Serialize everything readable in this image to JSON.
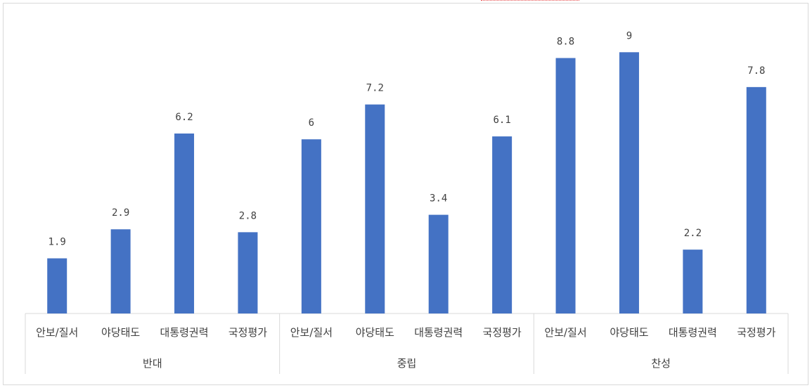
{
  "chart_data": {
    "type": "bar",
    "groups": [
      {
        "name": "반대",
        "categories": [
          "안보/질서",
          "야당태도",
          "대통령권력",
          "국정평가"
        ],
        "values": [
          1.9,
          2.9,
          6.2,
          2.8
        ]
      },
      {
        "name": "중립",
        "categories": [
          "안보/질서",
          "야당태도",
          "대통령권력",
          "국정평가"
        ],
        "values": [
          6,
          7.2,
          3.4,
          6.1
        ]
      },
      {
        "name": "찬성",
        "categories": [
          "안보/질서",
          "야당태도",
          "대통령권력",
          "국정평가"
        ],
        "values": [
          8.8,
          9,
          2.2,
          7.8
        ]
      }
    ],
    "ylim": [
      0,
      10
    ],
    "bar_color": "#4472c4",
    "data_labels": true,
    "grid": false,
    "legend": "none"
  }
}
